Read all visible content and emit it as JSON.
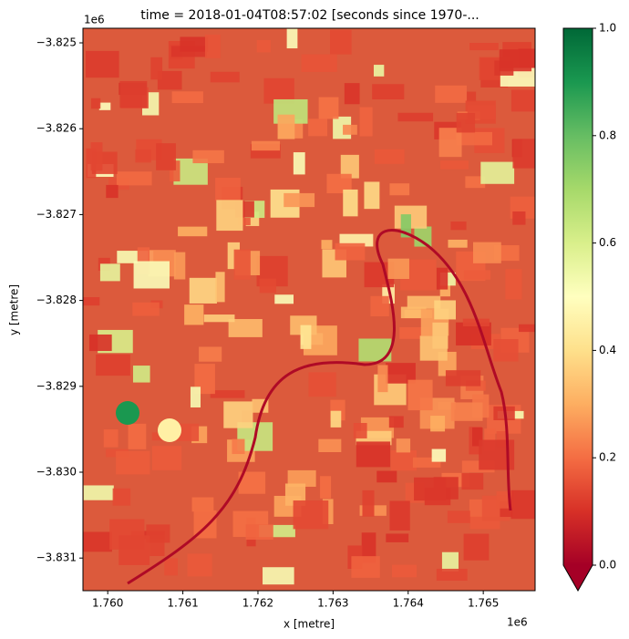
{
  "chart_data": {
    "type": "image",
    "title": "time = 2018-01-04T08:57:02 [seconds since 1970-...",
    "xlabel": "x [metre]",
    "ylabel": "y [metre]",
    "x_offset_label": "1e6",
    "y_offset_label": "1e6",
    "xlim": [
      1.75967,
      1.76569
    ],
    "ylim": [
      -3.83138,
      -3.82483
    ],
    "xticks": [
      {
        "value": 1.76,
        "label": "1.760"
      },
      {
        "value": 1.761,
        "label": "1.761"
      },
      {
        "value": 1.762,
        "label": "1.762"
      },
      {
        "value": 1.763,
        "label": "1.763"
      },
      {
        "value": 1.764,
        "label": "1.764"
      },
      {
        "value": 1.765,
        "label": "1.765"
      }
    ],
    "yticks": [
      {
        "value": -3.825,
        "label": "−3.825"
      },
      {
        "value": -3.826,
        "label": "−3.826"
      },
      {
        "value": -3.827,
        "label": "−3.827"
      },
      {
        "value": -3.828,
        "label": "−3.828"
      },
      {
        "value": -3.829,
        "label": "−3.829"
      },
      {
        "value": -3.83,
        "label": "−3.830"
      },
      {
        "value": -3.831,
        "label": "−3.831"
      }
    ],
    "clim": [
      0,
      1
    ],
    "cticks": [
      {
        "value": 0,
        "label": "0.0"
      },
      {
        "value": 0.2,
        "label": "0.2"
      },
      {
        "value": 0.4,
        "label": "0.4"
      },
      {
        "value": 0.6,
        "label": "0.6"
      },
      {
        "value": 0.8,
        "label": "0.8"
      },
      {
        "value": 1,
        "label": "1.0"
      }
    ],
    "colormap": [
      "#a50026",
      "#d73027",
      "#f46d43",
      "#fdae61",
      "#fee08b",
      "#ffffbf",
      "#d9ef8b",
      "#a6d96a",
      "#66bd63",
      "#1a9850",
      "#006837"
    ],
    "extend": "min"
  }
}
